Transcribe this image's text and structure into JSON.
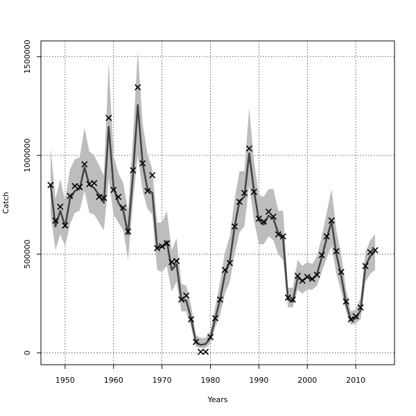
{
  "chart_data": {
    "type": "line",
    "title": "",
    "xlabel": "Years",
    "ylabel": "Catch",
    "xlim": [
      1945,
      2018
    ],
    "ylim": [
      -60000,
      1580000
    ],
    "x_ticks": [
      1950,
      1960,
      1970,
      1980,
      1990,
      2000,
      2010
    ],
    "x_tick_labels": [
      "1950",
      "1960",
      "1970",
      "1980",
      "1990",
      "2000",
      "2010"
    ],
    "y_ticks": [
      0,
      500000,
      1000000,
      1500000
    ],
    "y_tick_labels": [
      "0",
      "500000",
      "1000000",
      "1500000"
    ],
    "grid": true,
    "legend": "none",
    "colors": {
      "band": "#bdbdbd",
      "line": "#444444",
      "points": "#000000"
    },
    "series": [
      {
        "kind": "observed-points",
        "marker": "x",
        "x": [
          1947,
          1948,
          1949,
          1950,
          1951,
          1952,
          1953,
          1954,
          1955,
          1956,
          1957,
          1958,
          1959,
          1960,
          1961,
          1962,
          1963,
          1964,
          1965,
          1966,
          1967,
          1968,
          1969,
          1970,
          1971,
          1972,
          1973,
          1974,
          1975,
          1976,
          1977,
          1978,
          1979,
          1980,
          1981,
          1982,
          1983,
          1984,
          1985,
          1986,
          1987,
          1988,
          1989,
          1990,
          1991,
          1992,
          1993,
          1994,
          1995,
          1996,
          1997,
          1998,
          1999,
          2000,
          2001,
          2002,
          2003,
          2004,
          2005,
          2006,
          2007,
          2008,
          2009,
          2010,
          2011,
          2012,
          2013,
          2014
        ],
        "y": [
          850000,
          670000,
          740000,
          645000,
          795000,
          845000,
          840000,
          955000,
          855000,
          860000,
          790000,
          785000,
          1190000,
          825000,
          790000,
          735000,
          615000,
          925000,
          1345000,
          960000,
          820000,
          900000,
          530000,
          540000,
          555000,
          460000,
          465000,
          270000,
          290000,
          170000,
          55000,
          5000,
          5000,
          80000,
          175000,
          270000,
          420000,
          455000,
          640000,
          765000,
          810000,
          1035000,
          815000,
          680000,
          665000,
          715000,
          690000,
          600000,
          590000,
          280000,
          270000,
          390000,
          365000,
          385000,
          375000,
          395000,
          495000,
          590000,
          670000,
          515000,
          410000,
          260000,
          170000,
          185000,
          230000,
          440000,
          510000,
          520000
        ]
      },
      {
        "kind": "fitted-line",
        "x": [
          1947,
          1948,
          1949,
          1950,
          1951,
          1952,
          1953,
          1954,
          1955,
          1956,
          1957,
          1958,
          1959,
          1960,
          1961,
          1962,
          1963,
          1964,
          1965,
          1966,
          1967,
          1968,
          1969,
          1970,
          1971,
          1972,
          1973,
          1974,
          1975,
          1976,
          1977,
          1978,
          1979,
          1980,
          1981,
          1982,
          1983,
          1984,
          1985,
          1986,
          1987,
          1988,
          1989,
          1990,
          1991,
          1992,
          1993,
          1994,
          1995,
          1996,
          1997,
          1998,
          1999,
          2000,
          2001,
          2002,
          2003,
          2004,
          2005,
          2006,
          2007,
          2008,
          2009,
          2010,
          2011,
          2012,
          2013,
          2014
        ],
        "y": [
          850000,
          640000,
          720000,
          640000,
          780000,
          820000,
          830000,
          940000,
          850000,
          835000,
          800000,
          760000,
          1145000,
          840000,
          760000,
          720000,
          600000,
          900000,
          1255000,
          960000,
          830000,
          810000,
          535000,
          535000,
          565000,
          420000,
          450000,
          270000,
          265000,
          175000,
          55000,
          40000,
          45000,
          75000,
          175000,
          270000,
          400000,
          465000,
          640000,
          770000,
          790000,
          1010000,
          820000,
          670000,
          650000,
          695000,
          680000,
          605000,
          580000,
          270000,
          260000,
          380000,
          365000,
          385000,
          370000,
          400000,
          485000,
          580000,
          665000,
          500000,
          390000,
          250000,
          165000,
          175000,
          215000,
          440000,
          490000,
          515000
        ]
      },
      {
        "kind": "confidence-band",
        "x": [
          1947,
          1948,
          1949,
          1950,
          1951,
          1952,
          1953,
          1954,
          1955,
          1956,
          1957,
          1958,
          1959,
          1960,
          1961,
          1962,
          1963,
          1964,
          1965,
          1966,
          1967,
          1968,
          1969,
          1970,
          1971,
          1972,
          1973,
          1974,
          1975,
          1976,
          1977,
          1978,
          1979,
          1980,
          1981,
          1982,
          1983,
          1984,
          1985,
          1986,
          1987,
          1988,
          1989,
          1990,
          1991,
          1992,
          1993,
          1994,
          1995,
          1996,
          1997,
          1998,
          1999,
          2000,
          2001,
          2002,
          2003,
          2004,
          2005,
          2006,
          2007,
          2008,
          2009,
          2010,
          2011,
          2012,
          2013,
          2014
        ],
        "lower": [
          700000,
          520000,
          600000,
          540000,
          650000,
          710000,
          720000,
          820000,
          710000,
          700000,
          660000,
          620000,
          880000,
          700000,
          660000,
          620000,
          470000,
          760000,
          1000000,
          820000,
          730000,
          700000,
          420000,
          410000,
          440000,
          310000,
          360000,
          210000,
          210000,
          130000,
          30000,
          25000,
          25000,
          45000,
          130000,
          190000,
          300000,
          360000,
          500000,
          610000,
          640000,
          850000,
          670000,
          550000,
          550000,
          590000,
          570000,
          500000,
          470000,
          230000,
          230000,
          320000,
          300000,
          320000,
          320000,
          340000,
          410000,
          480000,
          540000,
          400000,
          310000,
          210000,
          140000,
          150000,
          170000,
          360000,
          400000,
          420000
        ],
        "upper": [
          1040000,
          780000,
          880000,
          770000,
          930000,
          980000,
          990000,
          1140000,
          1020000,
          1000000,
          950000,
          900000,
          1470000,
          1000000,
          910000,
          860000,
          720000,
          1090000,
          1530000,
          1160000,
          1010000,
          930000,
          660000,
          660000,
          720000,
          520000,
          580000,
          350000,
          340000,
          240000,
          90000,
          75000,
          75000,
          115000,
          235000,
          360000,
          510000,
          590000,
          780000,
          920000,
          920000,
          1240000,
          970000,
          800000,
          790000,
          830000,
          830000,
          720000,
          720000,
          330000,
          330000,
          470000,
          440000,
          460000,
          450000,
          490000,
          590000,
          710000,
          830000,
          620000,
          500000,
          320000,
          210000,
          220000,
          280000,
          510000,
          570000,
          600000
        ]
      }
    ]
  }
}
